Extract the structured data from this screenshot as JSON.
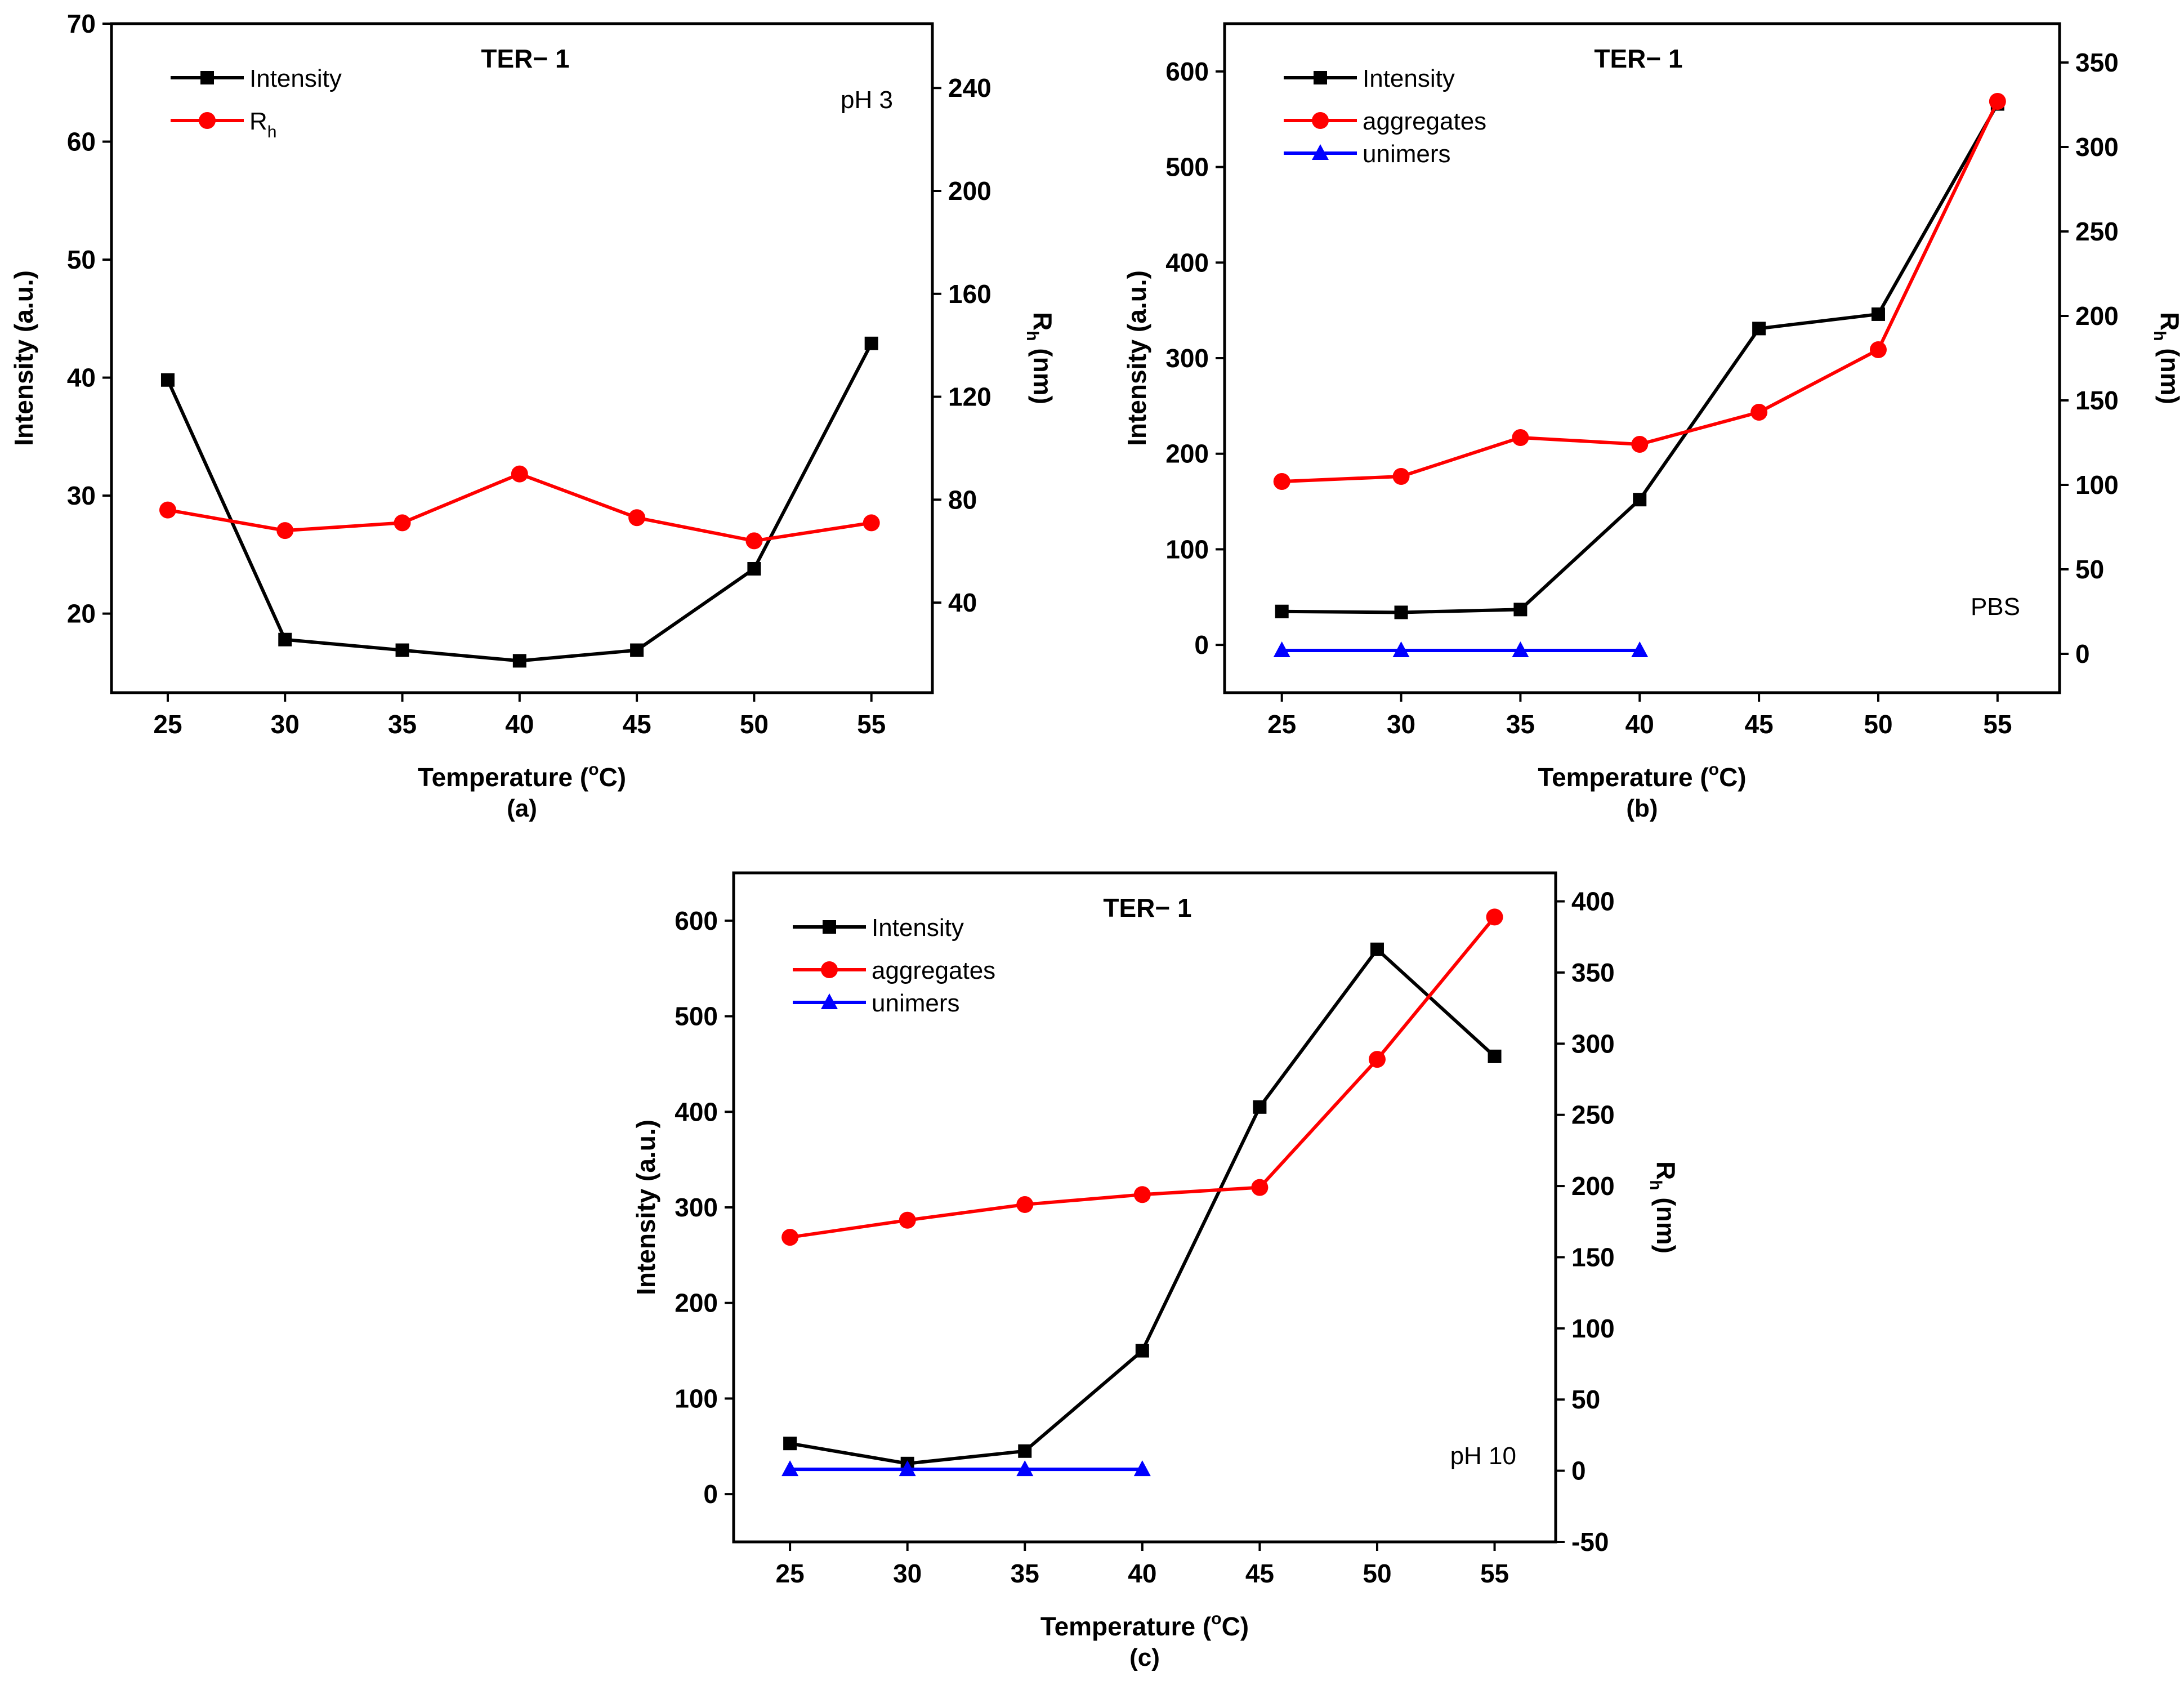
{
  "chart_data": [
    {
      "id": "a",
      "type": "line",
      "title": "TER− 1",
      "condition": "pH 3",
      "panel_label": "(a)",
      "xlabel": "Temperature (°C)",
      "xlabel_parts": {
        "pre": "Temperature (",
        "sup": "o",
        "post": "C)"
      },
      "ylabel_left": "Intensity (a.u.)",
      "ylabel_right_parts": {
        "base": "R",
        "sub": "h",
        "post": " (nm)"
      },
      "x": [
        25,
        30,
        35,
        40,
        45,
        50,
        55
      ],
      "x_ticks": [
        25,
        30,
        35,
        40,
        45,
        50,
        55
      ],
      "xlim": [
        22.6,
        57.6
      ],
      "y_left_ticks": [
        20,
        30,
        40,
        50,
        60,
        70
      ],
      "ylim_left": [
        13.3,
        70
      ],
      "y_right_ticks": [
        40,
        80,
        120,
        160,
        200,
        240
      ],
      "ylim_right": [
        5,
        265
      ],
      "series": [
        {
          "name": "Intensity",
          "axis": "left",
          "color": "#000000",
          "marker": "square",
          "values": [
            39.8,
            17.8,
            16.9,
            16.0,
            16.9,
            23.8,
            42.9
          ]
        },
        {
          "name": "Rh",
          "legend_base": "R",
          "legend_sub": "h",
          "axis": "right",
          "color": "#ff0000",
          "marker": "circle",
          "values": [
            76,
            68,
            71,
            90,
            73,
            64,
            71
          ]
        }
      ]
    },
    {
      "id": "b",
      "type": "line",
      "title": "TER− 1",
      "condition": "PBS",
      "panel_label": "(b)",
      "xlabel": "Temperature (°C)",
      "xlabel_parts": {
        "pre": "Temperature (",
        "sup": "o",
        "post": "C)"
      },
      "ylabel_left": "Intensity (a.u.)",
      "ylabel_right_parts": {
        "base": "R",
        "sub": "h",
        "post": " (nm)"
      },
      "x": [
        25,
        30,
        35,
        40,
        45,
        50,
        55
      ],
      "x_ticks": [
        25,
        30,
        35,
        40,
        45,
        50,
        55
      ],
      "xlim": [
        22.6,
        57.6
      ],
      "y_left_ticks": [
        0,
        100,
        200,
        300,
        400,
        500,
        600
      ],
      "ylim_left": [
        -50,
        650
      ],
      "y_right_ticks": [
        0,
        50,
        100,
        150,
        200,
        250,
        300,
        350
      ],
      "ylim_right": [
        -23,
        373
      ],
      "series": [
        {
          "name": "Intensity",
          "axis": "left",
          "color": "#000000",
          "marker": "square",
          "values": [
            35,
            34,
            37,
            152,
            331,
            346,
            566
          ]
        },
        {
          "name": "aggregates",
          "axis": "right",
          "color": "#ff0000",
          "marker": "circle",
          "values": [
            102,
            105,
            128,
            124,
            143,
            180,
            327
          ]
        },
        {
          "name": "unimers",
          "axis": "right",
          "color": "#0000ff",
          "marker": "triangle",
          "values": [
            2,
            2,
            2,
            2,
            null,
            null,
            null
          ]
        }
      ]
    },
    {
      "id": "c",
      "type": "line",
      "title": "TER− 1",
      "condition": "pH 10",
      "panel_label": "(c)",
      "xlabel": "Temperature (°C)",
      "xlabel_parts": {
        "pre": "Temperature (",
        "sup": "o",
        "post": "C)"
      },
      "ylabel_left": "Intensity (a.u.)",
      "ylabel_right_parts": {
        "base": "R",
        "sub": "h",
        "post": " (nm)"
      },
      "x": [
        25,
        30,
        35,
        40,
        45,
        50,
        55
      ],
      "x_ticks": [
        25,
        30,
        35,
        40,
        45,
        50,
        55
      ],
      "xlim": [
        22.6,
        57.6
      ],
      "y_left_ticks": [
        0,
        100,
        200,
        300,
        400,
        500,
        600
      ],
      "ylim_left": [
        -50,
        650
      ],
      "y_right_ticks": [
        -50,
        0,
        50,
        100,
        150,
        200,
        250,
        300,
        350,
        400
      ],
      "ylim_right": [
        -50,
        420
      ],
      "series": [
        {
          "name": "Intensity",
          "axis": "left",
          "color": "#000000",
          "marker": "square",
          "values": [
            53,
            32,
            45,
            150,
            405,
            570,
            458
          ]
        },
        {
          "name": "aggregates",
          "axis": "right",
          "color": "#ff0000",
          "marker": "circle",
          "values": [
            164,
            176,
            187,
            194,
            199,
            289,
            389
          ]
        },
        {
          "name": "unimers",
          "axis": "right",
          "color": "#0000ff",
          "marker": "triangle",
          "values": [
            1,
            1,
            1,
            1,
            null,
            null,
            null
          ]
        }
      ]
    }
  ]
}
